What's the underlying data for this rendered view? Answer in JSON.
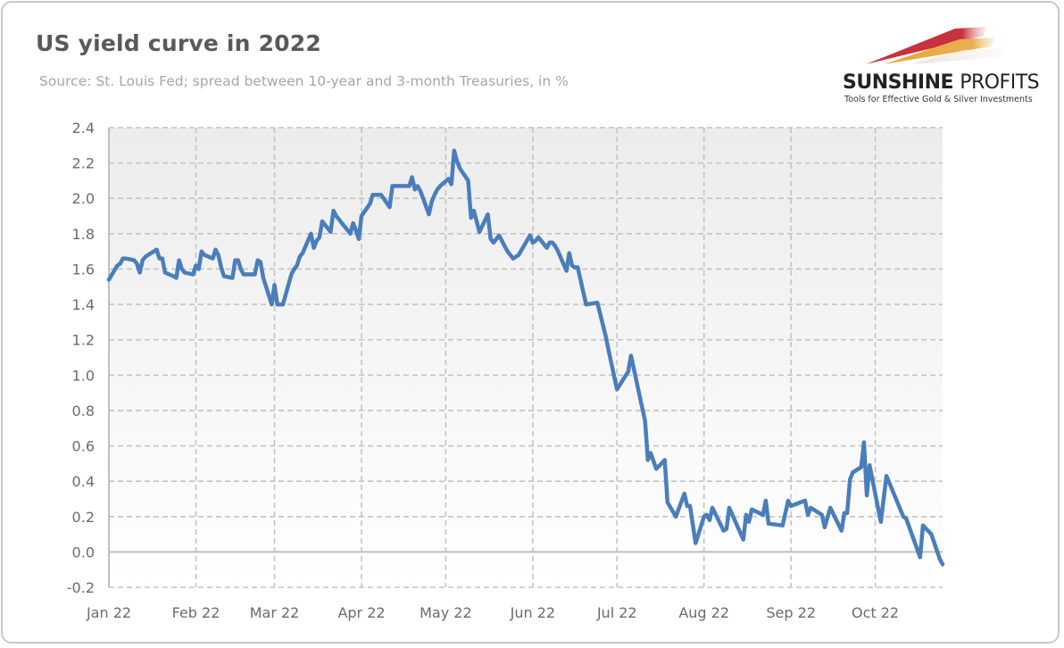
{
  "header": {
    "title": "US yield curve in 2022",
    "subtitle": "Source: St. Louis Fed; spread between 10-year and 3-month Treasuries, in %"
  },
  "logo": {
    "name_bold": "SUNSHINE",
    "name_thin": "PROFITS",
    "tagline": "Tools for Effective Gold & Silver Investments",
    "colors": [
      "#c8323c",
      "#e3a83a",
      "#d8d0c0"
    ]
  },
  "chart_data": {
    "type": "line",
    "title": "US yield curve in 2022",
    "subtitle": "Source: St. Louis Fed; spread between 10-year and 3-month Treasuries, in %",
    "xlabel": "",
    "ylabel": "",
    "ylim": [
      -0.2,
      2.4
    ],
    "xlim": [
      "2022-01-01",
      "2022-10-25"
    ],
    "yticks": [
      "2.4",
      "2.2",
      "2.0",
      "1.8",
      "1.6",
      "1.4",
      "1.2",
      "1.0",
      "0.8",
      "0.6",
      "0.4",
      "0.2",
      "0.0",
      "-0.2"
    ],
    "xticks": [
      {
        "date": "2022-01-01",
        "label": "Jan 22"
      },
      {
        "date": "2022-02-01",
        "label": "Feb 22"
      },
      {
        "date": "2022-03-01",
        "label": "Mar 22"
      },
      {
        "date": "2022-04-01",
        "label": "Apr 22"
      },
      {
        "date": "2022-05-01",
        "label": "May 22"
      },
      {
        "date": "2022-06-01",
        "label": "Jun 22"
      },
      {
        "date": "2022-07-01",
        "label": "Jul 22"
      },
      {
        "date": "2022-08-01",
        "label": "Aug 22"
      },
      {
        "date": "2022-09-01",
        "label": "Sep 22"
      },
      {
        "date": "2022-10-01",
        "label": "Oct 22"
      }
    ],
    "grid": true,
    "line_color": "#4a7ebb",
    "series": [
      {
        "x": [
          "2022-01-01",
          "2022-01-04",
          "2022-01-05",
          "2022-01-06",
          "2022-01-07",
          "2022-01-10",
          "2022-01-11",
          "2022-01-12",
          "2022-01-13",
          "2022-01-14",
          "2022-01-18",
          "2022-01-19",
          "2022-01-20",
          "2022-01-21",
          "2022-01-24",
          "2022-01-25",
          "2022-01-26",
          "2022-01-27",
          "2022-01-28",
          "2022-01-31",
          "2022-02-01",
          "2022-02-02",
          "2022-02-03",
          "2022-02-04",
          "2022-02-07",
          "2022-02-08",
          "2022-02-09",
          "2022-02-10",
          "2022-02-11",
          "2022-02-14",
          "2022-02-15",
          "2022-02-16",
          "2022-02-17",
          "2022-02-18",
          "2022-02-22",
          "2022-02-23",
          "2022-02-24",
          "2022-02-25",
          "2022-02-28",
          "2022-03-01",
          "2022-03-02",
          "2022-03-03",
          "2022-03-04",
          "2022-03-07",
          "2022-03-08",
          "2022-03-09",
          "2022-03-10",
          "2022-03-11",
          "2022-03-14",
          "2022-03-15",
          "2022-03-16",
          "2022-03-17",
          "2022-03-18",
          "2022-03-21",
          "2022-03-22",
          "2022-03-23",
          "2022-03-24",
          "2022-03-25",
          "2022-03-28",
          "2022-03-29",
          "2022-03-30",
          "2022-03-31",
          "2022-04-01",
          "2022-04-04",
          "2022-04-05",
          "2022-04-06",
          "2022-04-07",
          "2022-04-08",
          "2022-04-11",
          "2022-04-12",
          "2022-04-13",
          "2022-04-14",
          "2022-04-18",
          "2022-04-19",
          "2022-04-20",
          "2022-04-21",
          "2022-04-22",
          "2022-04-25",
          "2022-04-26",
          "2022-04-27",
          "2022-04-28",
          "2022-04-29",
          "2022-05-02",
          "2022-05-03",
          "2022-05-04",
          "2022-05-05",
          "2022-05-06",
          "2022-05-09",
          "2022-05-10",
          "2022-05-11",
          "2022-05-12",
          "2022-05-13",
          "2022-05-16",
          "2022-05-17",
          "2022-05-18",
          "2022-05-19",
          "2022-05-20",
          "2022-05-23",
          "2022-05-24",
          "2022-05-25",
          "2022-05-26",
          "2022-05-27",
          "2022-05-31",
          "2022-06-01",
          "2022-06-02",
          "2022-06-03",
          "2022-06-06",
          "2022-06-07",
          "2022-06-08",
          "2022-06-09",
          "2022-06-10",
          "2022-06-13",
          "2022-06-14",
          "2022-06-15",
          "2022-06-16",
          "2022-06-17",
          "2022-06-20",
          "2022-06-24",
          "2022-06-27",
          "2022-06-28",
          "2022-07-01",
          "2022-07-05",
          "2022-07-06",
          "2022-07-11",
          "2022-07-12",
          "2022-07-13",
          "2022-07-15",
          "2022-07-18",
          "2022-07-19",
          "2022-07-22",
          "2022-07-25",
          "2022-07-26",
          "2022-07-27",
          "2022-07-29",
          "2022-08-01",
          "2022-08-02",
          "2022-08-03",
          "2022-08-04",
          "2022-08-08",
          "2022-08-09",
          "2022-08-10",
          "2022-08-15",
          "2022-08-16",
          "2022-08-17",
          "2022-08-18",
          "2022-08-22",
          "2022-08-23",
          "2022-08-24",
          "2022-08-29",
          "2022-08-31",
          "2022-09-01",
          "2022-09-06",
          "2022-09-07",
          "2022-09-08",
          "2022-09-12",
          "2022-09-13",
          "2022-09-15",
          "2022-09-19",
          "2022-09-20",
          "2022-09-21",
          "2022-09-22",
          "2022-09-23",
          "2022-09-26",
          "2022-09-27",
          "2022-09-28",
          "2022-09-29",
          "2022-10-03",
          "2022-10-05",
          "2022-10-11",
          "2022-10-12",
          "2022-10-17",
          "2022-10-18",
          "2022-10-21",
          "2022-10-24",
          "2022-10-25"
        ],
        "values": [
          1.54,
          1.62,
          1.63,
          1.66,
          1.66,
          1.65,
          1.63,
          1.58,
          1.65,
          1.67,
          1.71,
          1.66,
          1.66,
          1.58,
          1.56,
          1.55,
          1.65,
          1.6,
          1.58,
          1.57,
          1.62,
          1.6,
          1.7,
          1.68,
          1.66,
          1.71,
          1.68,
          1.61,
          1.56,
          1.55,
          1.65,
          1.65,
          1.6,
          1.57,
          1.57,
          1.65,
          1.64,
          1.55,
          1.4,
          1.51,
          1.4,
          1.4,
          1.4,
          1.57,
          1.6,
          1.62,
          1.67,
          1.69,
          1.8,
          1.72,
          1.76,
          1.78,
          1.87,
          1.81,
          1.93,
          1.9,
          1.88,
          1.86,
          1.8,
          1.86,
          1.82,
          1.77,
          1.9,
          1.97,
          2.02,
          2.02,
          2.02,
          2.02,
          1.95,
          2.07,
          2.07,
          2.07,
          2.07,
          2.12,
          2.05,
          2.07,
          2.04,
          1.91,
          1.98,
          2.02,
          2.05,
          2.07,
          2.11,
          2.08,
          2.27,
          2.21,
          2.17,
          2.1,
          1.89,
          1.93,
          1.87,
          1.81,
          1.91,
          1.77,
          1.75,
          1.77,
          1.79,
          1.7,
          1.68,
          1.66,
          1.67,
          1.68,
          1.79,
          1.75,
          1.76,
          1.78,
          1.72,
          1.75,
          1.75,
          1.73,
          1.7,
          1.59,
          1.69,
          1.62,
          1.61,
          1.61,
          1.4,
          1.41,
          1.22,
          1.14,
          0.92,
          1.02,
          1.11,
          0.74,
          0.52,
          0.56,
          0.47,
          0.52,
          0.28,
          0.2,
          0.33,
          0.26,
          0.26,
          0.05,
          0.2,
          0.21,
          0.18,
          0.25,
          0.12,
          0.13,
          0.25,
          0.07,
          0.21,
          0.17,
          0.24,
          0.21,
          0.29,
          0.16,
          0.15,
          0.29,
          0.26,
          0.29,
          0.21,
          0.25,
          0.21,
          0.14,
          0.25,
          0.12,
          0.22,
          0.22,
          0.41,
          0.45,
          0.48,
          0.62,
          0.32,
          0.49,
          0.17,
          0.43,
          0.2,
          0.19,
          -0.03,
          0.15,
          0.1,
          -0.04,
          -0.07
        ]
      }
    ]
  }
}
